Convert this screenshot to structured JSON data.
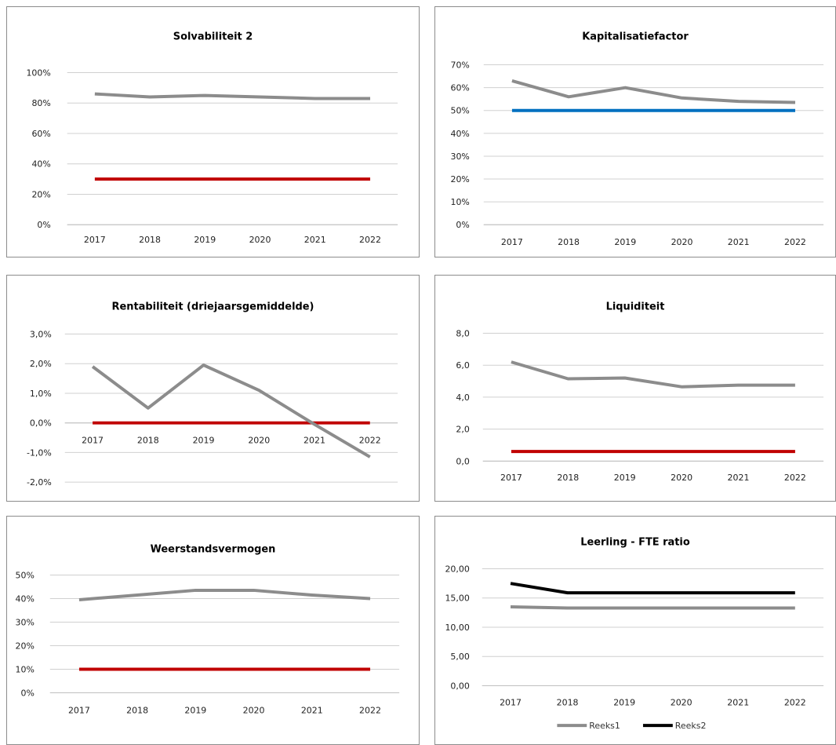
{
  "chart_data": [
    {
      "type": "line",
      "title": "Solvabiliteit 2",
      "categories": [
        "2017",
        "2018",
        "2019",
        "2020",
        "2021",
        "2022"
      ],
      "ylim": [
        0,
        1
      ],
      "yticks": [
        0,
        0.2,
        0.4,
        0.6,
        0.8,
        1.0
      ],
      "ytick_labels": [
        "0%",
        "20%",
        "40%",
        "60%",
        "80%",
        "100%"
      ],
      "grid": true,
      "series": [
        {
          "values": [
            0.86,
            0.84,
            0.85,
            0.84,
            0.83,
            0.83
          ],
          "color": "#8c8c8c"
        },
        {
          "values": [
            0.3,
            0.3,
            0.3,
            0.3,
            0.3,
            0.3
          ],
          "color": "#c00000"
        }
      ]
    },
    {
      "type": "line",
      "title": "Kapitalisatiefactor",
      "categories": [
        "2017",
        "2018",
        "2019",
        "2020",
        "2021",
        "2022"
      ],
      "ylim": [
        0,
        0.7
      ],
      "yticks": [
        0,
        0.1,
        0.2,
        0.3,
        0.4,
        0.5,
        0.6,
        0.7
      ],
      "ytick_labels": [
        "0%",
        "10%",
        "20%",
        "30%",
        "40%",
        "50%",
        "60%",
        "70%"
      ],
      "grid": true,
      "series": [
        {
          "values": [
            0.63,
            0.56,
            0.6,
            0.555,
            0.54,
            0.535
          ],
          "color": "#8c8c8c"
        },
        {
          "values": [
            0.5,
            0.5,
            0.5,
            0.5,
            0.5,
            0.5
          ],
          "color": "#0070c0"
        }
      ]
    },
    {
      "type": "line",
      "title": "Rentabiliteit (driejaarsgemiddelde)",
      "categories": [
        "2017",
        "2018",
        "2019",
        "2020",
        "2021",
        "2022"
      ],
      "ylim": [
        -0.02,
        0.03
      ],
      "yticks": [
        -0.02,
        -0.01,
        0,
        0.01,
        0.02,
        0.03
      ],
      "ytick_labels": [
        "-2,0%",
        "-1,0%",
        "0,0%",
        "1,0%",
        "2,0%",
        "3,0%"
      ],
      "grid": true,
      "series": [
        {
          "values": [
            0.019,
            0.005,
            0.0195,
            0.011,
            -0.0005,
            -0.0115
          ],
          "color": "#8c8c8c"
        },
        {
          "values": [
            0,
            0,
            0,
            0,
            0,
            0
          ],
          "color": "#c00000"
        }
      ]
    },
    {
      "type": "line",
      "title": "Liquiditeit",
      "categories": [
        "2017",
        "2018",
        "2019",
        "2020",
        "2021",
        "2022"
      ],
      "ylim": [
        0,
        8
      ],
      "yticks": [
        0,
        2,
        4,
        6,
        8
      ],
      "ytick_labels": [
        "0,0",
        "2,0",
        "4,0",
        "6,0",
        "8,0"
      ],
      "grid": true,
      "series": [
        {
          "values": [
            6.2,
            5.15,
            5.2,
            4.65,
            4.75,
            4.75
          ],
          "color": "#8c8c8c"
        },
        {
          "values": [
            0.6,
            0.6,
            0.6,
            0.6,
            0.6,
            0.6
          ],
          "color": "#c00000"
        }
      ]
    },
    {
      "type": "line",
      "title": "Weerstandsvermogen",
      "categories": [
        "2017",
        "2018",
        "2019",
        "2020",
        "2021",
        "2022"
      ],
      "ylim": [
        0,
        0.5
      ],
      "yticks": [
        0,
        0.1,
        0.2,
        0.3,
        0.4,
        0.5
      ],
      "ytick_labels": [
        "0%",
        "10%",
        "20%",
        "30%",
        "40%",
        "50%"
      ],
      "grid": true,
      "series": [
        {
          "values": [
            0.395,
            0.415,
            0.435,
            0.435,
            0.415,
            0.4
          ],
          "color": "#8c8c8c"
        },
        {
          "values": [
            0.1,
            0.1,
            0.1,
            0.1,
            0.1,
            0.1
          ],
          "color": "#c00000"
        }
      ]
    },
    {
      "type": "line",
      "title": "Leerling - FTE ratio",
      "categories": [
        "2017",
        "2018",
        "2019",
        "2020",
        "2021",
        "2022"
      ],
      "ylim": [
        0,
        20
      ],
      "yticks": [
        0,
        5,
        10,
        15,
        20
      ],
      "ytick_labels": [
        "0,00",
        "5,00",
        "10,00",
        "15,00",
        "20,00"
      ],
      "grid": true,
      "legend": "bottom",
      "series": [
        {
          "name": "Reeks1",
          "values": [
            13.5,
            13.3,
            13.3,
            13.3,
            13.3,
            13.3
          ],
          "color": "#8c8c8c"
        },
        {
          "name": "Reeks2",
          "values": [
            17.5,
            15.9,
            15.9,
            15.9,
            15.9,
            15.9
          ],
          "color": "#000000"
        }
      ]
    }
  ]
}
